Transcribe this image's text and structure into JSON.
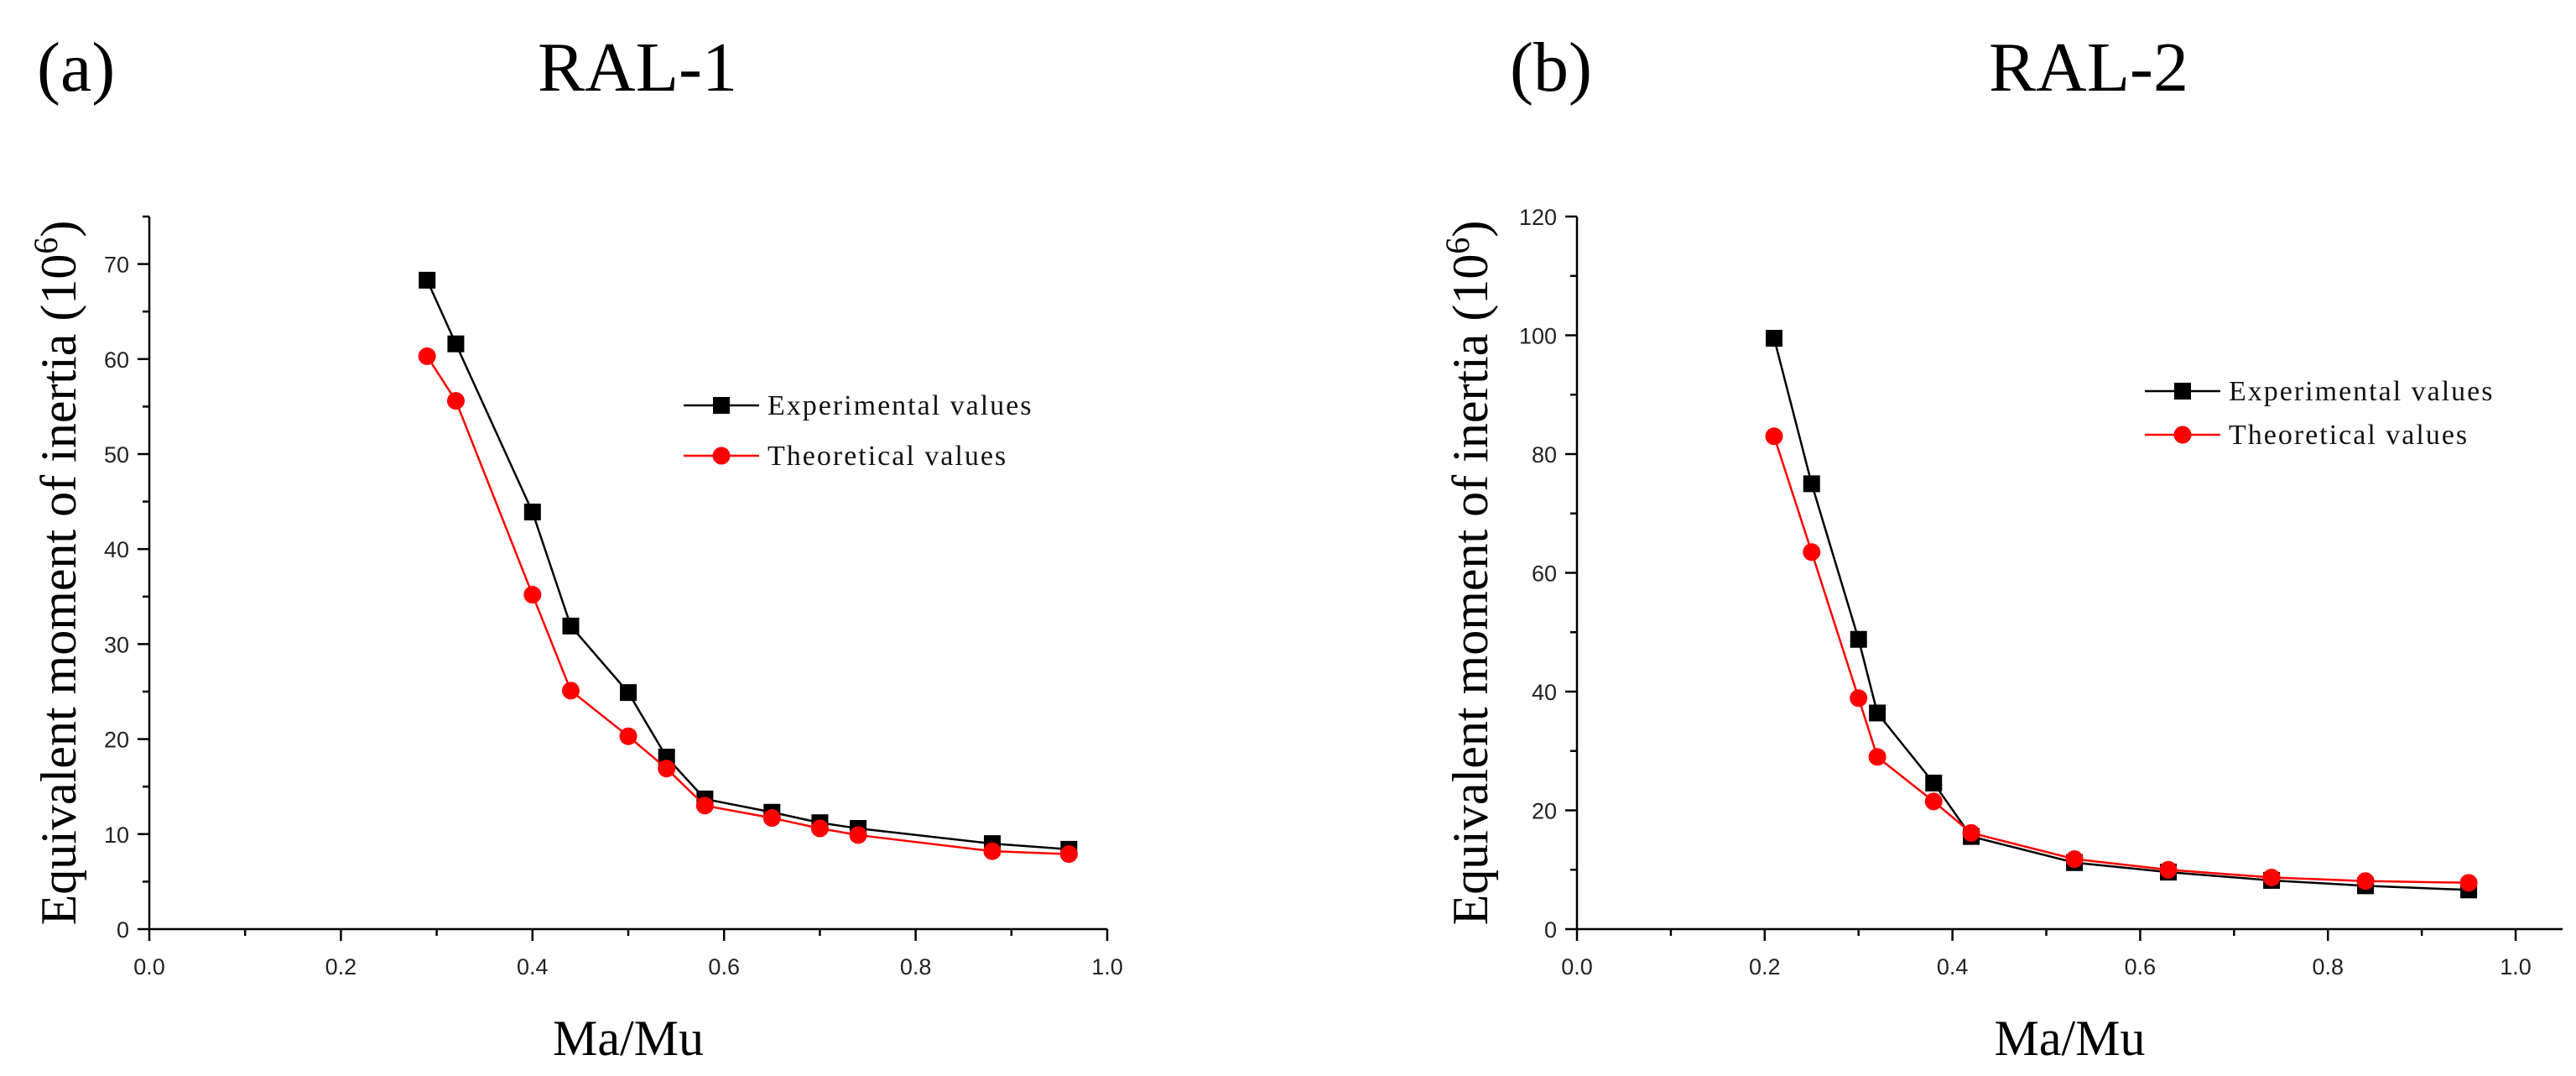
{
  "chart_data": [
    {
      "type": "line",
      "panel_label": "(a)",
      "title": "RAL-1",
      "xlabel": "Ma/Mu",
      "ylabel": "Equivalent moment of inertia (10",
      "ylabel_exponent": "6",
      "ylabel_close": ")",
      "xlim": [
        0.0,
        1.0
      ],
      "ylim": [
        0,
        75
      ],
      "xticks": [
        0.0,
        0.2,
        0.4,
        0.6,
        0.8,
        1.0
      ],
      "xtick_labels": [
        "0.0",
        "0.2",
        "0.4",
        "0.6",
        "0.8",
        "1.0"
      ],
      "yticks": [
        0,
        10,
        20,
        30,
        40,
        50,
        60,
        70
      ],
      "ytick_labels": [
        "0",
        "10",
        "20",
        "30",
        "40",
        "50",
        "60",
        "70"
      ],
      "legend_position": "right",
      "series": [
        {
          "name": "Experimental values",
          "color": "#000000",
          "marker": "square",
          "x": [
            0.29,
            0.32,
            0.4,
            0.44,
            0.5,
            0.54,
            0.58,
            0.65,
            0.7,
            0.74,
            0.88,
            0.96
          ],
          "y": [
            68.3,
            61.6,
            43.9,
            31.9,
            24.9,
            18.1,
            13.7,
            12.3,
            11.2,
            10.6,
            9.0,
            8.4
          ]
        },
        {
          "name": "Theoretical values",
          "color": "#ff0000",
          "marker": "circle",
          "x": [
            0.29,
            0.32,
            0.4,
            0.44,
            0.5,
            0.54,
            0.58,
            0.65,
            0.7,
            0.74,
            0.88,
            0.96
          ],
          "y": [
            60.3,
            55.6,
            35.2,
            25.1,
            20.3,
            16.9,
            13.0,
            11.7,
            10.6,
            9.9,
            8.2,
            7.9
          ]
        }
      ]
    },
    {
      "type": "line",
      "panel_label": "(b)",
      "title": "RAL-2",
      "xlabel": "Ma/Mu",
      "ylabel": "Equivalent moment of inertia (10",
      "ylabel_exponent": "6",
      "ylabel_close": ")",
      "xlim": [
        0.0,
        1.05
      ],
      "ylim": [
        0,
        120
      ],
      "xticks": [
        0.0,
        0.2,
        0.4,
        0.6,
        0.8,
        1.0
      ],
      "xtick_labels": [
        "0.0",
        "0.2",
        "0.4",
        "0.6",
        "0.8",
        "1.0"
      ],
      "yticks": [
        0,
        20,
        40,
        60,
        80,
        100,
        120
      ],
      "ytick_labels": [
        "0",
        "20",
        "40",
        "60",
        "80",
        "100",
        "120"
      ],
      "legend_position": "top-right",
      "series": [
        {
          "name": "Experimental values",
          "color": "#000000",
          "marker": "square",
          "x": [
            0.21,
            0.25,
            0.3,
            0.32,
            0.38,
            0.42,
            0.53,
            0.63,
            0.74,
            0.84,
            0.95
          ],
          "y": [
            99.5,
            75.0,
            48.8,
            36.4,
            24.6,
            15.6,
            11.2,
            9.6,
            8.2,
            7.3,
            6.6
          ]
        },
        {
          "name": "Theoretical values",
          "color": "#ff0000",
          "marker": "circle",
          "x": [
            0.21,
            0.25,
            0.3,
            0.32,
            0.38,
            0.42,
            0.53,
            0.63,
            0.74,
            0.84,
            0.95
          ],
          "y": [
            83.0,
            63.5,
            38.9,
            29.0,
            21.5,
            16.2,
            11.8,
            10.0,
            8.7,
            8.1,
            7.8
          ]
        }
      ]
    }
  ]
}
